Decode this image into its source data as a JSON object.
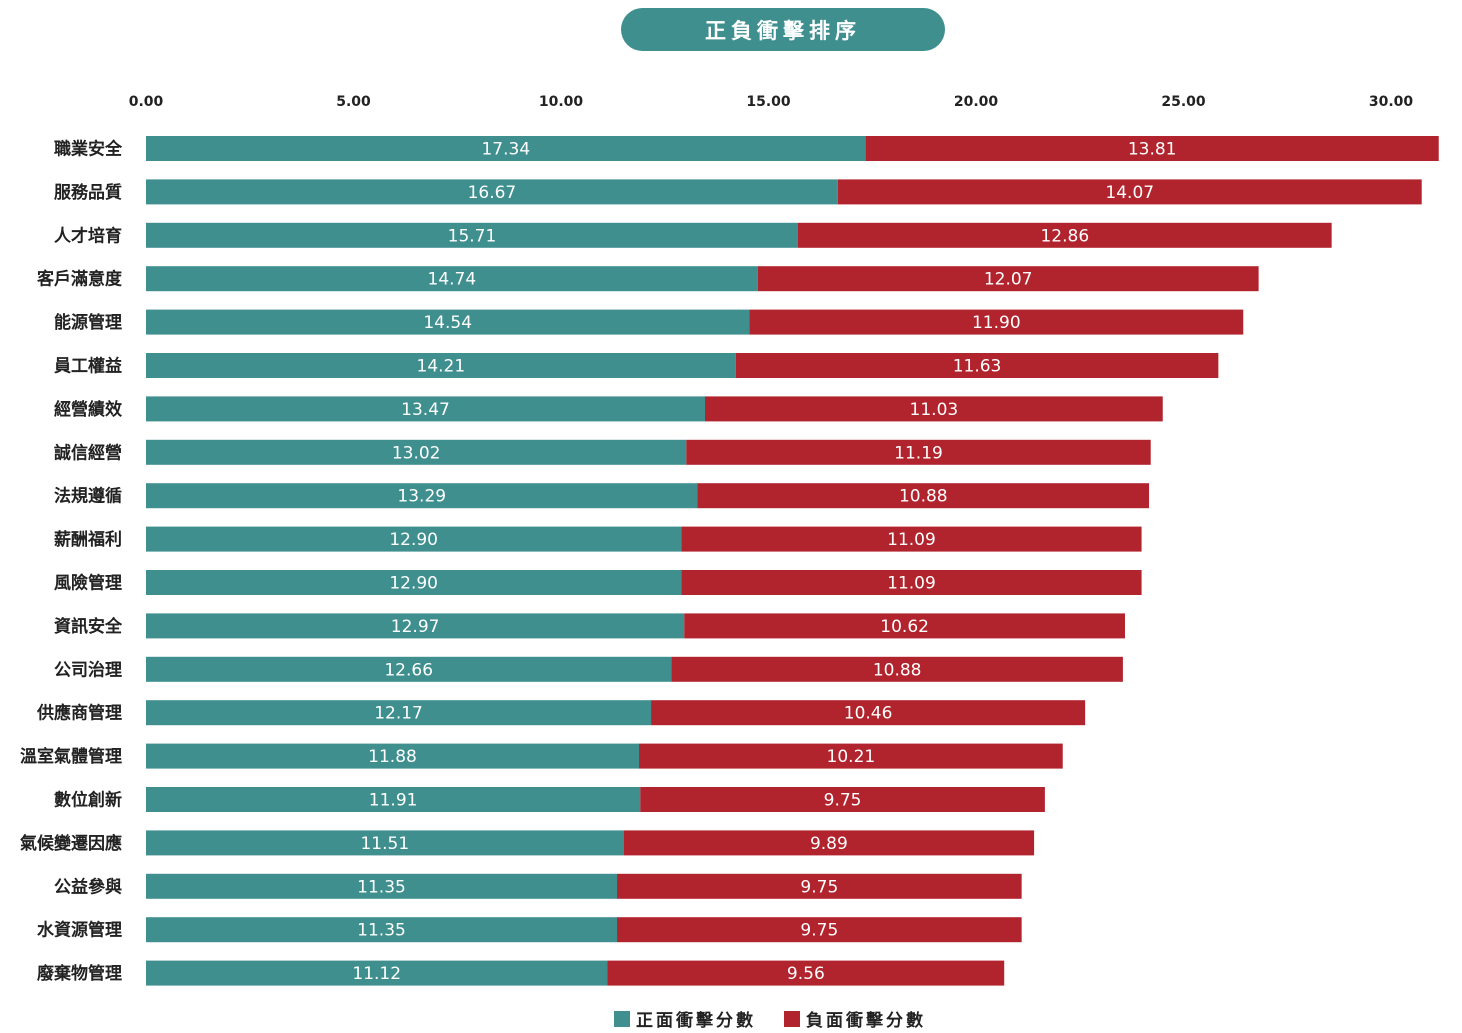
{
  "chart_data": {
    "type": "bar",
    "orientation": "horizontal",
    "stacked": true,
    "title": "正負衝擊排序",
    "xlim": [
      0,
      30
    ],
    "xticks": [
      "0.00",
      "5.00",
      "10.00",
      "15.00",
      "20.00",
      "25.00",
      "30.00"
    ],
    "categories": [
      "職業安全",
      "服務品質",
      "人才培育",
      "客戶滿意度",
      "能源管理",
      "員工權益",
      "經營績效",
      "誠信經營",
      "法規遵循",
      "薪酬福利",
      "風險管理",
      "資訊安全",
      "公司治理",
      "供應商管理",
      "溫室氣體管理",
      "數位創新",
      "氣候變遷因應",
      "公益參與",
      "水資源管理",
      "廢棄物管理"
    ],
    "series": [
      {
        "name": "正面衝擊分數",
        "color": "#3f8f8f",
        "values": [
          17.34,
          16.67,
          15.71,
          14.74,
          14.54,
          14.21,
          13.47,
          13.02,
          13.29,
          12.9,
          12.9,
          12.97,
          12.66,
          12.17,
          11.88,
          11.91,
          11.51,
          11.35,
          11.35,
          11.12
        ],
        "labels": [
          "17.34",
          "16.67",
          "15.71",
          "14.74",
          "14.54",
          "14.21",
          "13.47",
          "13.02",
          "13.29",
          "12.90",
          "12.90",
          "12.97",
          "12.66",
          "12.17",
          "11.88",
          "11.91",
          "11.51",
          "11.35",
          "11.35",
          "11.12"
        ]
      },
      {
        "name": "負面衝擊分數",
        "color": "#b1242e",
        "values": [
          13.81,
          14.07,
          12.86,
          12.07,
          11.9,
          11.63,
          11.03,
          11.19,
          10.88,
          11.09,
          11.09,
          10.62,
          10.88,
          10.46,
          10.21,
          9.75,
          9.89,
          9.75,
          9.75,
          9.56
        ],
        "labels": [
          "13.81",
          "14.07",
          "12.86",
          "12.07",
          "11.90",
          "11.63",
          "11.03",
          "11.19",
          "10.88",
          "11.09",
          "11.09",
          "10.62",
          "10.88",
          "10.46",
          "10.21",
          "9.75",
          "9.89",
          "9.75",
          "9.75",
          "9.56"
        ]
      }
    ],
    "legend": "bottom",
    "grid": false
  }
}
